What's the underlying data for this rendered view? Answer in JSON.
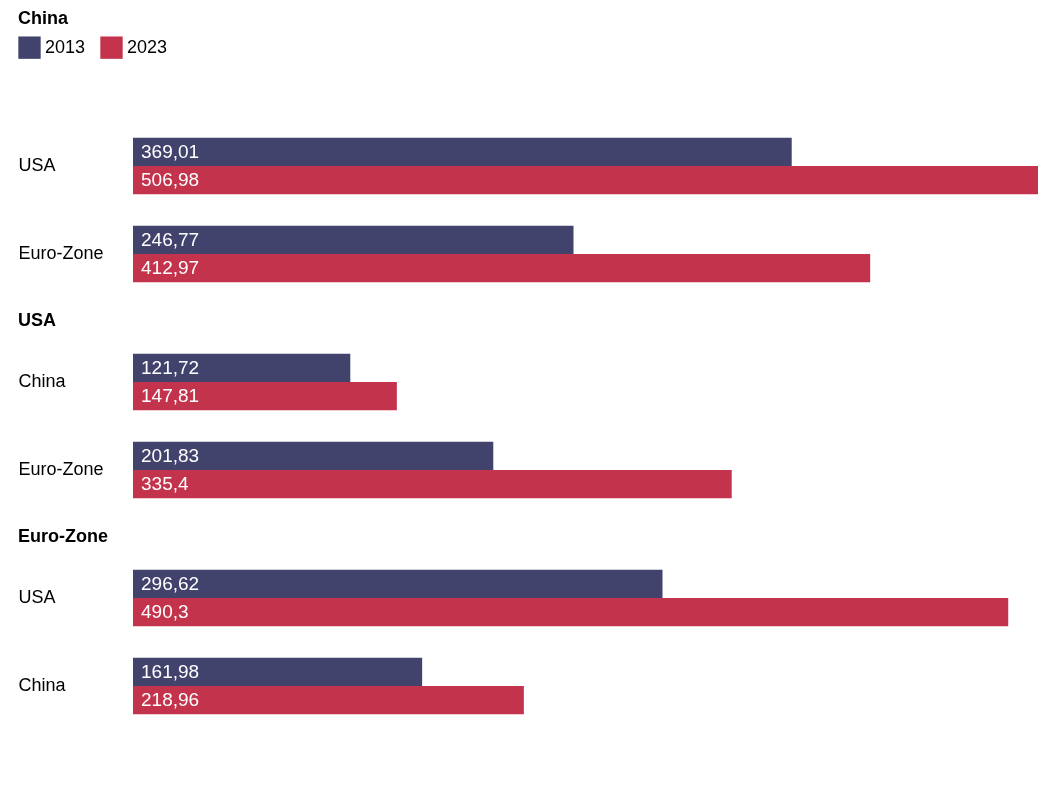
{
  "chart_data": [
    {
      "type": "bar",
      "title": "China",
      "orientation": "horizontal",
      "legend": "top left",
      "categories": [
        "USA",
        "Euro-Zone"
      ],
      "series": [
        {
          "name": "2013",
          "color": "#41436d",
          "values": [
            369.01,
            246.77
          ],
          "value_labels": [
            "369,01",
            "246,77"
          ]
        },
        {
          "name": "2023",
          "color": "#c4334c",
          "values": [
            506.98,
            412.97
          ],
          "value_labels": [
            "506,98",
            "412,97"
          ]
        }
      ]
    },
    {
      "type": "bar",
      "title": "USA",
      "orientation": "horizontal",
      "legend": false,
      "categories": [
        "China",
        "Euro-Zone"
      ],
      "series": [
        {
          "name": "2013",
          "color": "#41436d",
          "values": [
            121.72,
            201.83
          ],
          "value_labels": [
            "121,72",
            "201,83"
          ]
        },
        {
          "name": "2023",
          "color": "#c4334c",
          "values": [
            147.81,
            335.4
          ],
          "value_labels": [
            "147,81",
            "335,4"
          ]
        }
      ]
    },
    {
      "type": "bar",
      "title": "Euro-Zone",
      "orientation": "horizontal",
      "legend": false,
      "categories": [
        "USA",
        "China"
      ],
      "series": [
        {
          "name": "2013",
          "color": "#41436d",
          "values": [
            296.62,
            161.98
          ],
          "value_labels": [
            "296,62",
            "161,98"
          ]
        },
        {
          "name": "2023",
          "color": "#c4334c",
          "values": [
            490.3,
            218.96
          ],
          "value_labels": [
            "490,3",
            "218,96"
          ]
        }
      ]
    }
  ]
}
